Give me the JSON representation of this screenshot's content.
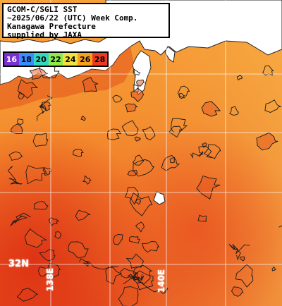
{
  "header": {
    "lines": [
      "GCOM-C/SGLI SST",
      "~2025/06/22 (UTC) Week Comp.",
      "Kanagawa Prefecture",
      "supplied by JAXA"
    ]
  },
  "legend": {
    "items": [
      {
        "label": "16",
        "color": "#7a2fd0",
        "text_color": "#ffffff"
      },
      {
        "label": "18",
        "color": "#3a8cff",
        "text_color": "#000000"
      },
      {
        "label": "20",
        "color": "#35d6c0",
        "text_color": "#000000"
      },
      {
        "label": "22",
        "color": "#8ee84e",
        "text_color": "#000000"
      },
      {
        "label": "24",
        "color": "#f0e040",
        "text_color": "#000000"
      },
      {
        "label": "26",
        "color": "#f7a020",
        "text_color": "#000000"
      },
      {
        "label": "28",
        "color": "#ee3a1e",
        "text_color": "#000000"
      }
    ]
  },
  "grid_labels": {
    "lat_label": "32N",
    "lon_label_left": "138E",
    "lon_label_right": "140E"
  },
  "colors": {
    "land": "#ffffff",
    "sea_warm": "#e8451a",
    "sea_mid": "#f4882a",
    "sea_cool": "#f7b64a",
    "grid": "#ffffff",
    "contour": "#1a1a1a"
  }
}
